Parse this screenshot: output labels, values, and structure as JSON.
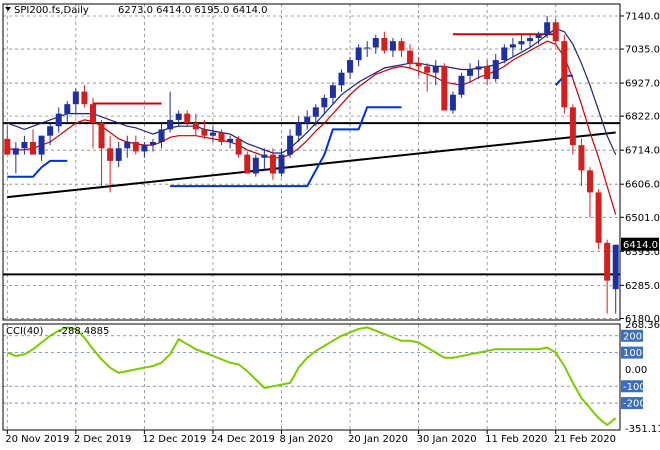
{
  "chart_data": [
    {
      "type": "candlestick",
      "title": "SPI200.fs,Daily",
      "ohlc_summary": "6273.0 6414.0 6195.0 6414.0",
      "ylim": [
        6175,
        7178
      ],
      "y_ticks": [
        "7140.0",
        "7035.0",
        "6927.0",
        "6822.0",
        "6714.0",
        "6606.0",
        "6501.0",
        "6393.0",
        "6285.0",
        "6180.0"
      ],
      "current_price": "6414.0",
      "x_tick_labels": [
        {
          "i": 0,
          "label": "20 Nov 2019"
        },
        {
          "i": 8,
          "label": "2 Dec 2019"
        },
        {
          "i": 16,
          "label": "12 Dec 2019"
        },
        {
          "i": 24,
          "label": "24 Dec 2019"
        },
        {
          "i": 32,
          "label": "8 Jan 2020"
        },
        {
          "i": 40,
          "label": "20 Jan 2020"
        },
        {
          "i": 48,
          "label": "30 Jan 2020"
        },
        {
          "i": 56,
          "label": "11 Feb 2020"
        },
        {
          "i": 64,
          "label": "21 Feb 2020"
        }
      ],
      "candles": [
        [
          6750,
          6790,
          6700,
          6700
        ],
        [
          6700,
          6740,
          6640,
          6720
        ],
        [
          6720,
          6760,
          6700,
          6740
        ],
        [
          6740,
          6780,
          6700,
          6700
        ],
        [
          6700,
          6760,
          6680,
          6760
        ],
        [
          6760,
          6800,
          6730,
          6790
        ],
        [
          6790,
          6850,
          6770,
          6830
        ],
        [
          6830,
          6870,
          6800,
          6860
        ],
        [
          6860,
          6910,
          6830,
          6900
        ],
        [
          6900,
          6920,
          6850,
          6860
        ],
        [
          6860,
          6880,
          6720,
          6800
        ],
        [
          6800,
          6810,
          6600,
          6720
        ],
        [
          6720,
          6760,
          6580,
          6680
        ],
        [
          6680,
          6740,
          6660,
          6720
        ],
        [
          6720,
          6760,
          6690,
          6740
        ],
        [
          6740,
          6760,
          6700,
          6710
        ],
        [
          6710,
          6740,
          6690,
          6730
        ],
        [
          6730,
          6750,
          6710,
          6740
        ],
        [
          6740,
          6800,
          6720,
          6780
        ],
        [
          6780,
          6900,
          6770,
          6810
        ],
        [
          6810,
          6840,
          6790,
          6830
        ],
        [
          6830,
          6840,
          6790,
          6800
        ],
        [
          6800,
          6830,
          6760,
          6780
        ],
        [
          6780,
          6810,
          6750,
          6760
        ],
        [
          6760,
          6790,
          6740,
          6770
        ],
        [
          6770,
          6780,
          6730,
          6740
        ],
        [
          6740,
          6760,
          6720,
          6750
        ],
        [
          6750,
          6760,
          6690,
          6700
        ],
        [
          6700,
          6710,
          6640,
          6640
        ],
        [
          6640,
          6700,
          6630,
          6690
        ],
        [
          6690,
          6720,
          6650,
          6700
        ],
        [
          6700,
          6720,
          6620,
          6640
        ],
        [
          6640,
          6720,
          6630,
          6700
        ],
        [
          6700,
          6780,
          6690,
          6760
        ],
        [
          6760,
          6820,
          6740,
          6800
        ],
        [
          6800,
          6840,
          6780,
          6820
        ],
        [
          6820,
          6860,
          6790,
          6850
        ],
        [
          6850,
          6890,
          6830,
          6880
        ],
        [
          6880,
          6930,
          6860,
          6920
        ],
        [
          6920,
          6970,
          6900,
          6960
        ],
        [
          6960,
          7010,
          6940,
          7000
        ],
        [
          7000,
          7050,
          6980,
          7040
        ],
        [
          7040,
          7060,
          7010,
          7040
        ],
        [
          7040,
          7080,
          7020,
          7070
        ],
        [
          7070,
          7090,
          7020,
          7030
        ],
        [
          7030,
          7070,
          7010,
          7060
        ],
        [
          7060,
          7070,
          7010,
          7030
        ],
        [
          7030,
          7050,
          6970,
          6990
        ],
        [
          6990,
          7010,
          6950,
          6980
        ],
        [
          6980,
          6990,
          6900,
          6960
        ],
        [
          6960,
          7000,
          6920,
          6980
        ],
        [
          6980,
          6990,
          6840,
          6840
        ],
        [
          6840,
          6900,
          6830,
          6890
        ],
        [
          6890,
          6960,
          6880,
          6950
        ],
        [
          6950,
          6990,
          6930,
          6970
        ],
        [
          6970,
          7000,
          6940,
          6980
        ],
        [
          6980,
          7000,
          6920,
          6940
        ],
        [
          6940,
          7020,
          6930,
          7000
        ],
        [
          7000,
          7050,
          6990,
          7040
        ],
        [
          7040,
          7070,
          7010,
          7050
        ],
        [
          7050,
          7080,
          7030,
          7060
        ],
        [
          7060,
          7080,
          7040,
          7070
        ],
        [
          7070,
          7090,
          7050,
          7080
        ],
        [
          7080,
          7140,
          7070,
          7120
        ],
        [
          7120,
          7130,
          7050,
          7060
        ],
        [
          7060,
          7080,
          6830,
          6850
        ],
        [
          6850,
          6860,
          6700,
          6730
        ],
        [
          6730,
          6750,
          6600,
          6650
        ],
        [
          6650,
          6660,
          6500,
          6580
        ],
        [
          6580,
          6590,
          6400,
          6420
        ],
        [
          6420,
          6430,
          6195,
          6300
        ],
        [
          6273,
          6414,
          6195,
          6414
        ]
      ],
      "series": [
        {
          "color": "#1a237e",
          "values": [
            6800,
            6790,
            6780,
            6790,
            6800,
            6810,
            6820,
            6830,
            6830,
            6830,
            6830,
            6820,
            6810,
            6800,
            6790,
            6785,
            6775,
            6765,
            6775,
            6785,
            6790,
            6790,
            6790,
            6780,
            6775,
            6770,
            6765,
            6750,
            6735,
            6725,
            6715,
            6705,
            6705,
            6720,
            6745,
            6770,
            6800,
            6830,
            6860,
            6890,
            6910,
            6930,
            6945,
            6960,
            6975,
            6980,
            6985,
            6990,
            6990,
            6985,
            6980,
            6980,
            6975,
            6970,
            6970,
            6975,
            6980,
            6985,
            6995,
            7010,
            7025,
            7040,
            7060,
            7080,
            7100,
            7090,
            7050,
            6990,
            6920,
            6840,
            6760,
            6700
          ]
        },
        {
          "color": "#cc0000",
          "values": [
            6720,
            6715,
            6715,
            6720,
            6730,
            6740,
            6760,
            6780,
            6800,
            6810,
            6805,
            6790,
            6770,
            6750,
            6740,
            6735,
            6730,
            6730,
            6740,
            6755,
            6760,
            6760,
            6760,
            6755,
            6750,
            6745,
            6740,
            6730,
            6715,
            6705,
            6695,
            6690,
            6690,
            6700,
            6720,
            6745,
            6775,
            6800,
            6830,
            6860,
            6890,
            6915,
            6935,
            6955,
            6965,
            6975,
            6980,
            6975,
            6965,
            6955,
            6945,
            6930,
            6925,
            6920,
            6930,
            6945,
            6955,
            6965,
            6980,
            7000,
            7015,
            7030,
            7045,
            7060,
            7050,
            7010,
            6940,
            6860,
            6770,
            6690,
            6600,
            6510
          ]
        },
        {
          "color": "#0033cc",
          "values": [
            6630,
            6630,
            6630,
            6630,
            6660,
            6680,
            6680,
            6680,
            null,
            null,
            null,
            null,
            null,
            null,
            null,
            null,
            null,
            null,
            null,
            6600,
            6600,
            6600,
            6600,
            6600,
            6600,
            6600,
            6600,
            6600,
            6600,
            6600,
            6600,
            6600,
            6600,
            6600,
            6600,
            6600,
            6650,
            6700,
            6780,
            6780,
            6780,
            6780,
            6850,
            6850,
            6850,
            6850,
            6850,
            null,
            null,
            null,
            null,
            null,
            null,
            null,
            null,
            null,
            null,
            null,
            null,
            null,
            null,
            null,
            null,
            null,
            6920,
            6950,
            6950,
            null,
            null,
            null,
            null,
            null
          ]
        }
      ],
      "lines": [
        {
          "color": "#000000",
          "from": [
            0,
            6565
          ],
          "to": [
            71,
            6770
          ]
        },
        {
          "color": "#000000",
          "horizontal": 6800
        },
        {
          "color": "#000000",
          "horizontal": 6320
        },
        {
          "color": "#cc0000",
          "from": [
            10,
            6862
          ],
          "to": [
            18,
            6862
          ]
        },
        {
          "color": "#cc0000",
          "from": [
            52,
            7082
          ],
          "to": [
            64,
            7082
          ]
        }
      ]
    },
    {
      "type": "line",
      "title": "CCI(40)",
      "current_value": "-288.4885",
      "ylim": [
        -360,
        270
      ],
      "y_ticks": [
        "268.3605",
        "200",
        "100",
        "0.00",
        "-100",
        "-200",
        "-351.113"
      ],
      "levels": [
        200,
        100,
        -100,
        -200
      ],
      "series": [
        {
          "color": "#7acc00",
          "values": [
            100,
            80,
            90,
            120,
            160,
            200,
            230,
            250,
            240,
            190,
            120,
            60,
            10,
            -20,
            -10,
            0,
            10,
            20,
            40,
            90,
            180,
            150,
            120,
            100,
            80,
            60,
            40,
            30,
            -10,
            -60,
            -110,
            -100,
            -90,
            -80,
            10,
            70,
            110,
            140,
            170,
            200,
            220,
            240,
            250,
            230,
            210,
            190,
            170,
            170,
            160,
            130,
            100,
            70,
            70,
            80,
            90,
            100,
            110,
            120,
            120,
            120,
            120,
            120,
            120,
            130,
            100,
            20,
            -80,
            -170,
            -230,
            -290,
            -330,
            -289
          ]
        }
      ]
    }
  ]
}
